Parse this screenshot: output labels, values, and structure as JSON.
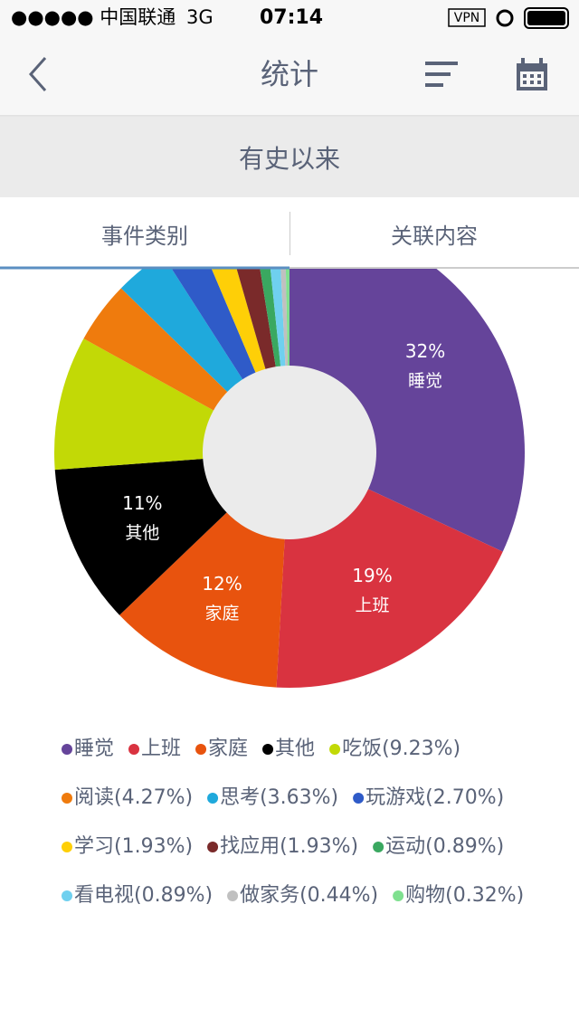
{
  "status_bar": {
    "carrier": "●●●●● 中国联通",
    "network": "3G",
    "time": "07:14",
    "vpn": "VPN"
  },
  "nav": {
    "title": "统计"
  },
  "banner": {
    "text": "有史以来"
  },
  "tabs": [
    "事件类别",
    "关联内容"
  ],
  "chart_data": {
    "type": "donut",
    "categories": [
      "睡觉",
      "上班",
      "家庭",
      "其他",
      "吃饭",
      "阅读",
      "思考",
      "玩游戏",
      "学习",
      "找应用",
      "运动",
      "看电视",
      "做家务",
      "购物"
    ],
    "values": [
      32,
      19,
      12,
      11,
      9.23,
      4.27,
      3.63,
      2.7,
      1.93,
      1.93,
      0.89,
      0.89,
      0.44,
      0.32
    ],
    "value_labels": [
      "32%",
      "19%",
      "12%",
      "11%",
      null,
      null,
      null,
      null,
      null,
      null,
      null,
      null,
      null,
      null
    ],
    "legend": [
      "睡觉",
      "上班",
      "家庭",
      "其他",
      "吃饭(9.23%)",
      "阅读(4.27%)",
      "思考(3.63%)",
      "玩游戏(2.70%)",
      "学习(1.93%)",
      "找应用(1.93%)",
      "运动(0.89%)",
      "看电视(0.89%)",
      "做家务(0.44%)",
      "购物(0.32%)"
    ],
    "colors": [
      "#65449a",
      "#d93340",
      "#e8530e",
      "#000000",
      "#c2d906",
      "#ef7b0d",
      "#1fa9dc",
      "#2f5bc8",
      "#fecf07",
      "#7a2a2a",
      "#3aa860",
      "#6fd0ef",
      "#c0c0c0",
      "#7fe08f"
    ]
  }
}
